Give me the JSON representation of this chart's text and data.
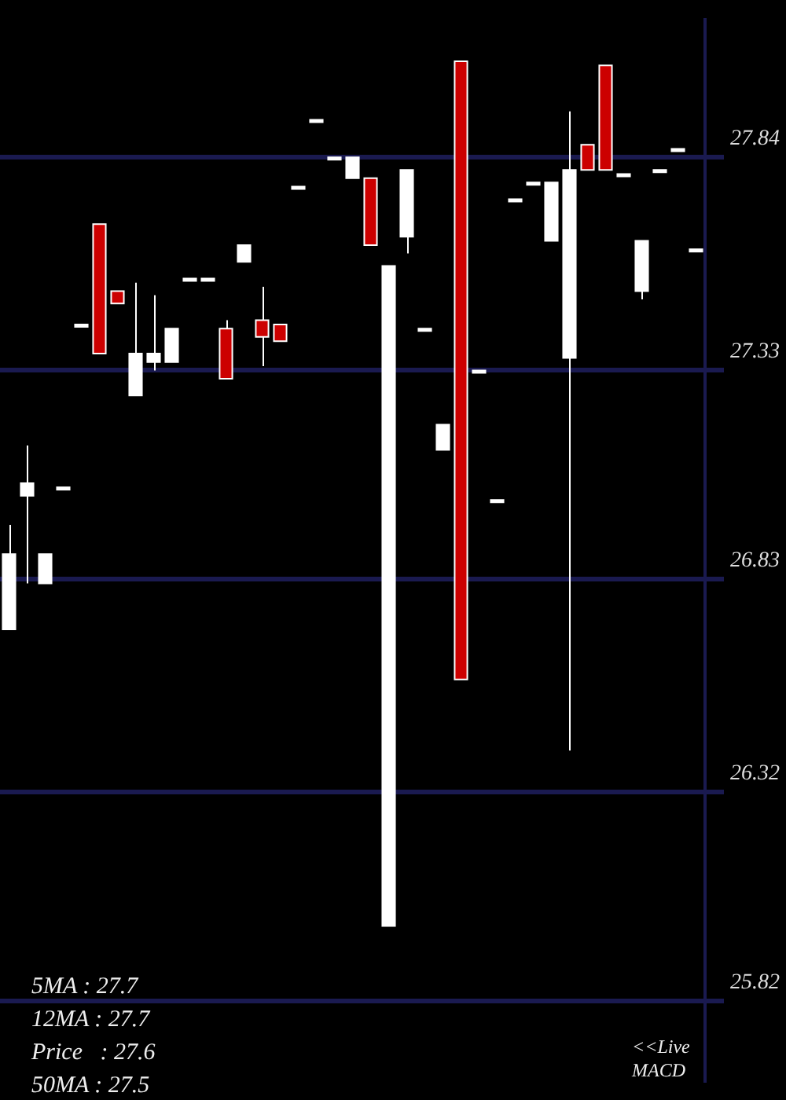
{
  "chart_data": {
    "type": "candlestick",
    "categories": [
      null,
      null,
      null,
      null,
      null,
      null,
      null,
      null,
      null,
      null,
      null,
      null,
      null,
      null,
      null,
      null,
      null,
      null,
      null,
      null,
      null,
      null,
      null,
      null,
      null,
      null,
      null,
      null,
      null,
      null,
      null,
      null,
      null,
      null,
      null,
      null,
      null,
      null,
      null
    ],
    "ohlc": [
      [
        26.71,
        26.96,
        26.71,
        26.89
      ],
      [
        27.03,
        27.15,
        26.82,
        27.06
      ],
      [
        26.82,
        26.89,
        26.82,
        26.89
      ],
      [
        27.05,
        27.05,
        27.05,
        27.05
      ],
      [
        27.44,
        27.44,
        27.44,
        27.44
      ],
      [
        27.68,
        27.68,
        27.37,
        27.37
      ],
      [
        27.52,
        27.52,
        27.49,
        27.49
      ],
      [
        27.27,
        27.54,
        27.27,
        27.37
      ],
      [
        27.35,
        27.51,
        27.33,
        27.37
      ],
      [
        27.35,
        27.43,
        27.35,
        27.43
      ],
      [
        27.55,
        27.55,
        27.55,
        27.55
      ],
      [
        27.55,
        27.55,
        27.55,
        27.55
      ],
      [
        27.43,
        27.45,
        27.31,
        27.31
      ],
      [
        27.59,
        27.63,
        27.59,
        27.63
      ],
      [
        27.45,
        27.53,
        27.34,
        27.41
      ],
      [
        27.44,
        27.44,
        27.4,
        27.4
      ],
      [
        27.77,
        27.77,
        27.77,
        27.77
      ],
      [
        27.93,
        27.93,
        27.93,
        27.93
      ],
      [
        27.84,
        27.84,
        27.84,
        27.84
      ],
      [
        27.79,
        27.84,
        27.79,
        27.84
      ],
      [
        27.79,
        27.79,
        27.63,
        27.63
      ],
      [
        26.0,
        27.58,
        26.0,
        27.58
      ],
      [
        27.65,
        27.81,
        27.61,
        27.81
      ],
      [
        27.43,
        27.43,
        27.43,
        27.43
      ],
      [
        27.14,
        27.2,
        27.14,
        27.2
      ],
      [
        28.07,
        28.07,
        26.59,
        26.59
      ],
      [
        27.33,
        27.33,
        27.33,
        27.33
      ],
      [
        27.02,
        27.02,
        27.02,
        27.02
      ],
      [
        27.74,
        27.74,
        27.74,
        27.74
      ],
      [
        27.78,
        27.78,
        27.78,
        27.78
      ],
      [
        27.64,
        27.78,
        27.64,
        27.78
      ],
      [
        27.36,
        27.95,
        26.42,
        27.81
      ],
      [
        27.87,
        27.87,
        27.81,
        27.81
      ],
      [
        28.06,
        28.06,
        27.81,
        27.81
      ],
      [
        27.8,
        27.8,
        27.8,
        27.8
      ],
      [
        27.52,
        27.64,
        27.5,
        27.64
      ],
      [
        27.81,
        27.81,
        27.81,
        27.81
      ],
      [
        27.86,
        27.86,
        27.86,
        27.86
      ],
      [
        27.62,
        27.62,
        27.62,
        27.62
      ]
    ],
    "colors": [
      "#ffffff",
      "#ffffff",
      "#ffffff",
      "#ffffff",
      "#ffffff",
      "#cc0000",
      "#cc0000",
      "#ffffff",
      "#ffffff",
      "#ffffff",
      "#ffffff",
      "#ffffff",
      "#cc0000",
      "#ffffff",
      "#cc0000",
      "#cc0000",
      "#ffffff",
      "#ffffff",
      "#ffffff",
      "#ffffff",
      "#cc0000",
      "#ffffff",
      "#ffffff",
      "#ffffff",
      "#ffffff",
      "#cc0000",
      "#ffffff",
      "#ffffff",
      "#ffffff",
      "#ffffff",
      "#ffffff",
      "#ffffff",
      "#cc0000",
      "#cc0000",
      "#ffffff",
      "#ffffff",
      "#ffffff",
      "#ffffff",
      "#ffffff"
    ],
    "ylim": [
      25.63,
      28.17
    ],
    "yticks": [
      25.82,
      26.32,
      26.83,
      27.33,
      27.84
    ],
    "grid": "y",
    "tick_labels": "y",
    "annotations": [
      "5MA : 27.7",
      "12MA : 27.7",
      "Price   : 27.6",
      "50MA : 27.5",
      "<<Live MACD"
    ]
  }
}
